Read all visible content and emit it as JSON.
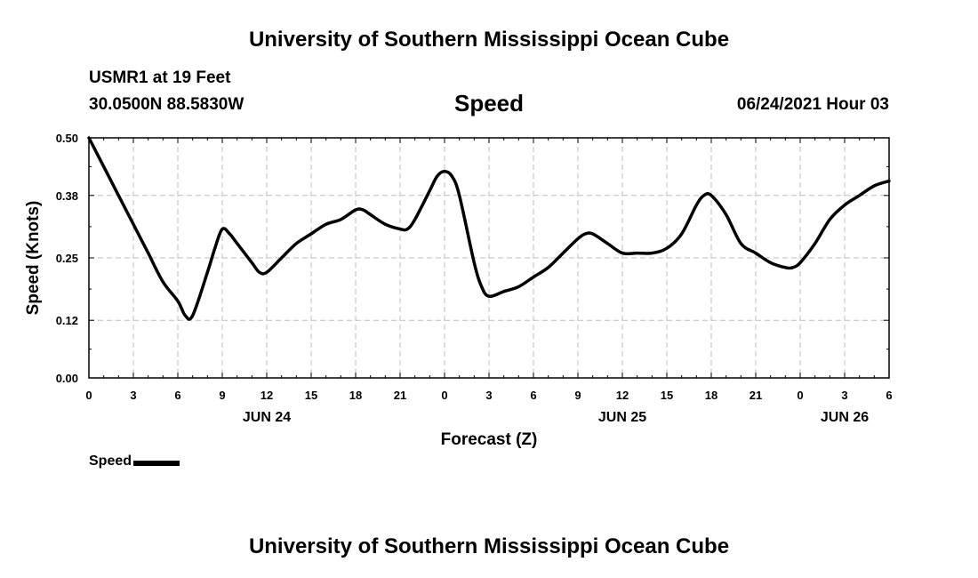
{
  "header": {
    "title": "University of Southern Mississippi Ocean Cube",
    "station": "USMR1 at 19 Feet",
    "coords": "30.0500N  88.5830W",
    "variable": "Speed",
    "datetime": "06/24/2021 Hour 03"
  },
  "footer": {
    "title": "University of Southern Mississippi Ocean Cube"
  },
  "legend": {
    "label": "Speed"
  },
  "colors": {
    "line": "#000000",
    "grid": "#bdbdbd",
    "background": "#ffffff"
  },
  "chart_data": {
    "type": "line",
    "title": "Speed",
    "xlabel": "Forecast (Z)",
    "ylabel": "Speed (Knots)",
    "ylim": [
      0.0,
      0.5
    ],
    "xlim": [
      0,
      54
    ],
    "x_unit": "forecast hour from 00Z JUN 24",
    "yticks": [
      0.0,
      0.12,
      0.25,
      0.38,
      0.5
    ],
    "ytick_labels": [
      "0.00",
      "0.12",
      "0.25",
      "0.38",
      "0.50"
    ],
    "xticks": [
      0,
      3,
      6,
      9,
      12,
      15,
      18,
      21,
      24,
      27,
      30,
      33,
      36,
      39,
      42,
      45,
      48,
      51,
      54
    ],
    "xtick_labels": [
      "0",
      "3",
      "6",
      "9",
      "12",
      "15",
      "18",
      "21",
      "0",
      "3",
      "6",
      "9",
      "12",
      "15",
      "18",
      "21",
      "0",
      "3",
      "6"
    ],
    "date_labels": [
      {
        "x": 12,
        "label": "JUN 24"
      },
      {
        "x": 36,
        "label": "JUN 25"
      },
      {
        "x": 51,
        "label": "JUN 26"
      }
    ],
    "grid": true,
    "legend_position": "bottom-left",
    "series": [
      {
        "name": "Speed",
        "x": [
          0,
          1,
          2,
          3,
          4,
          5,
          6,
          6.5,
          7,
          8,
          8.5,
          9,
          9.5,
          10,
          11,
          11.5,
          12,
          13,
          14,
          15,
          16,
          17,
          18,
          18.5,
          19,
          20,
          21,
          21.5,
          22,
          23,
          23.5,
          24,
          24.5,
          25,
          26,
          26.5,
          27,
          28,
          29,
          30,
          31,
          32,
          33,
          33.5,
          34,
          35,
          36,
          37,
          38,
          39,
          40,
          41,
          41.5,
          42,
          43,
          44,
          45,
          46,
          47,
          47.5,
          48,
          49,
          50,
          51,
          52,
          53,
          54
        ],
        "values": [
          0.5,
          0.44,
          0.38,
          0.32,
          0.26,
          0.2,
          0.16,
          0.13,
          0.13,
          0.22,
          0.27,
          0.31,
          0.3,
          0.28,
          0.24,
          0.22,
          0.22,
          0.25,
          0.28,
          0.3,
          0.32,
          0.33,
          0.35,
          0.35,
          0.34,
          0.32,
          0.31,
          0.31,
          0.33,
          0.39,
          0.42,
          0.43,
          0.42,
          0.38,
          0.24,
          0.19,
          0.17,
          0.18,
          0.19,
          0.21,
          0.23,
          0.26,
          0.29,
          0.3,
          0.3,
          0.28,
          0.26,
          0.26,
          0.26,
          0.27,
          0.3,
          0.36,
          0.38,
          0.38,
          0.34,
          0.28,
          0.26,
          0.24,
          0.23,
          0.23,
          0.24,
          0.28,
          0.33,
          0.36,
          0.38,
          0.4,
          0.41
        ]
      }
    ]
  }
}
